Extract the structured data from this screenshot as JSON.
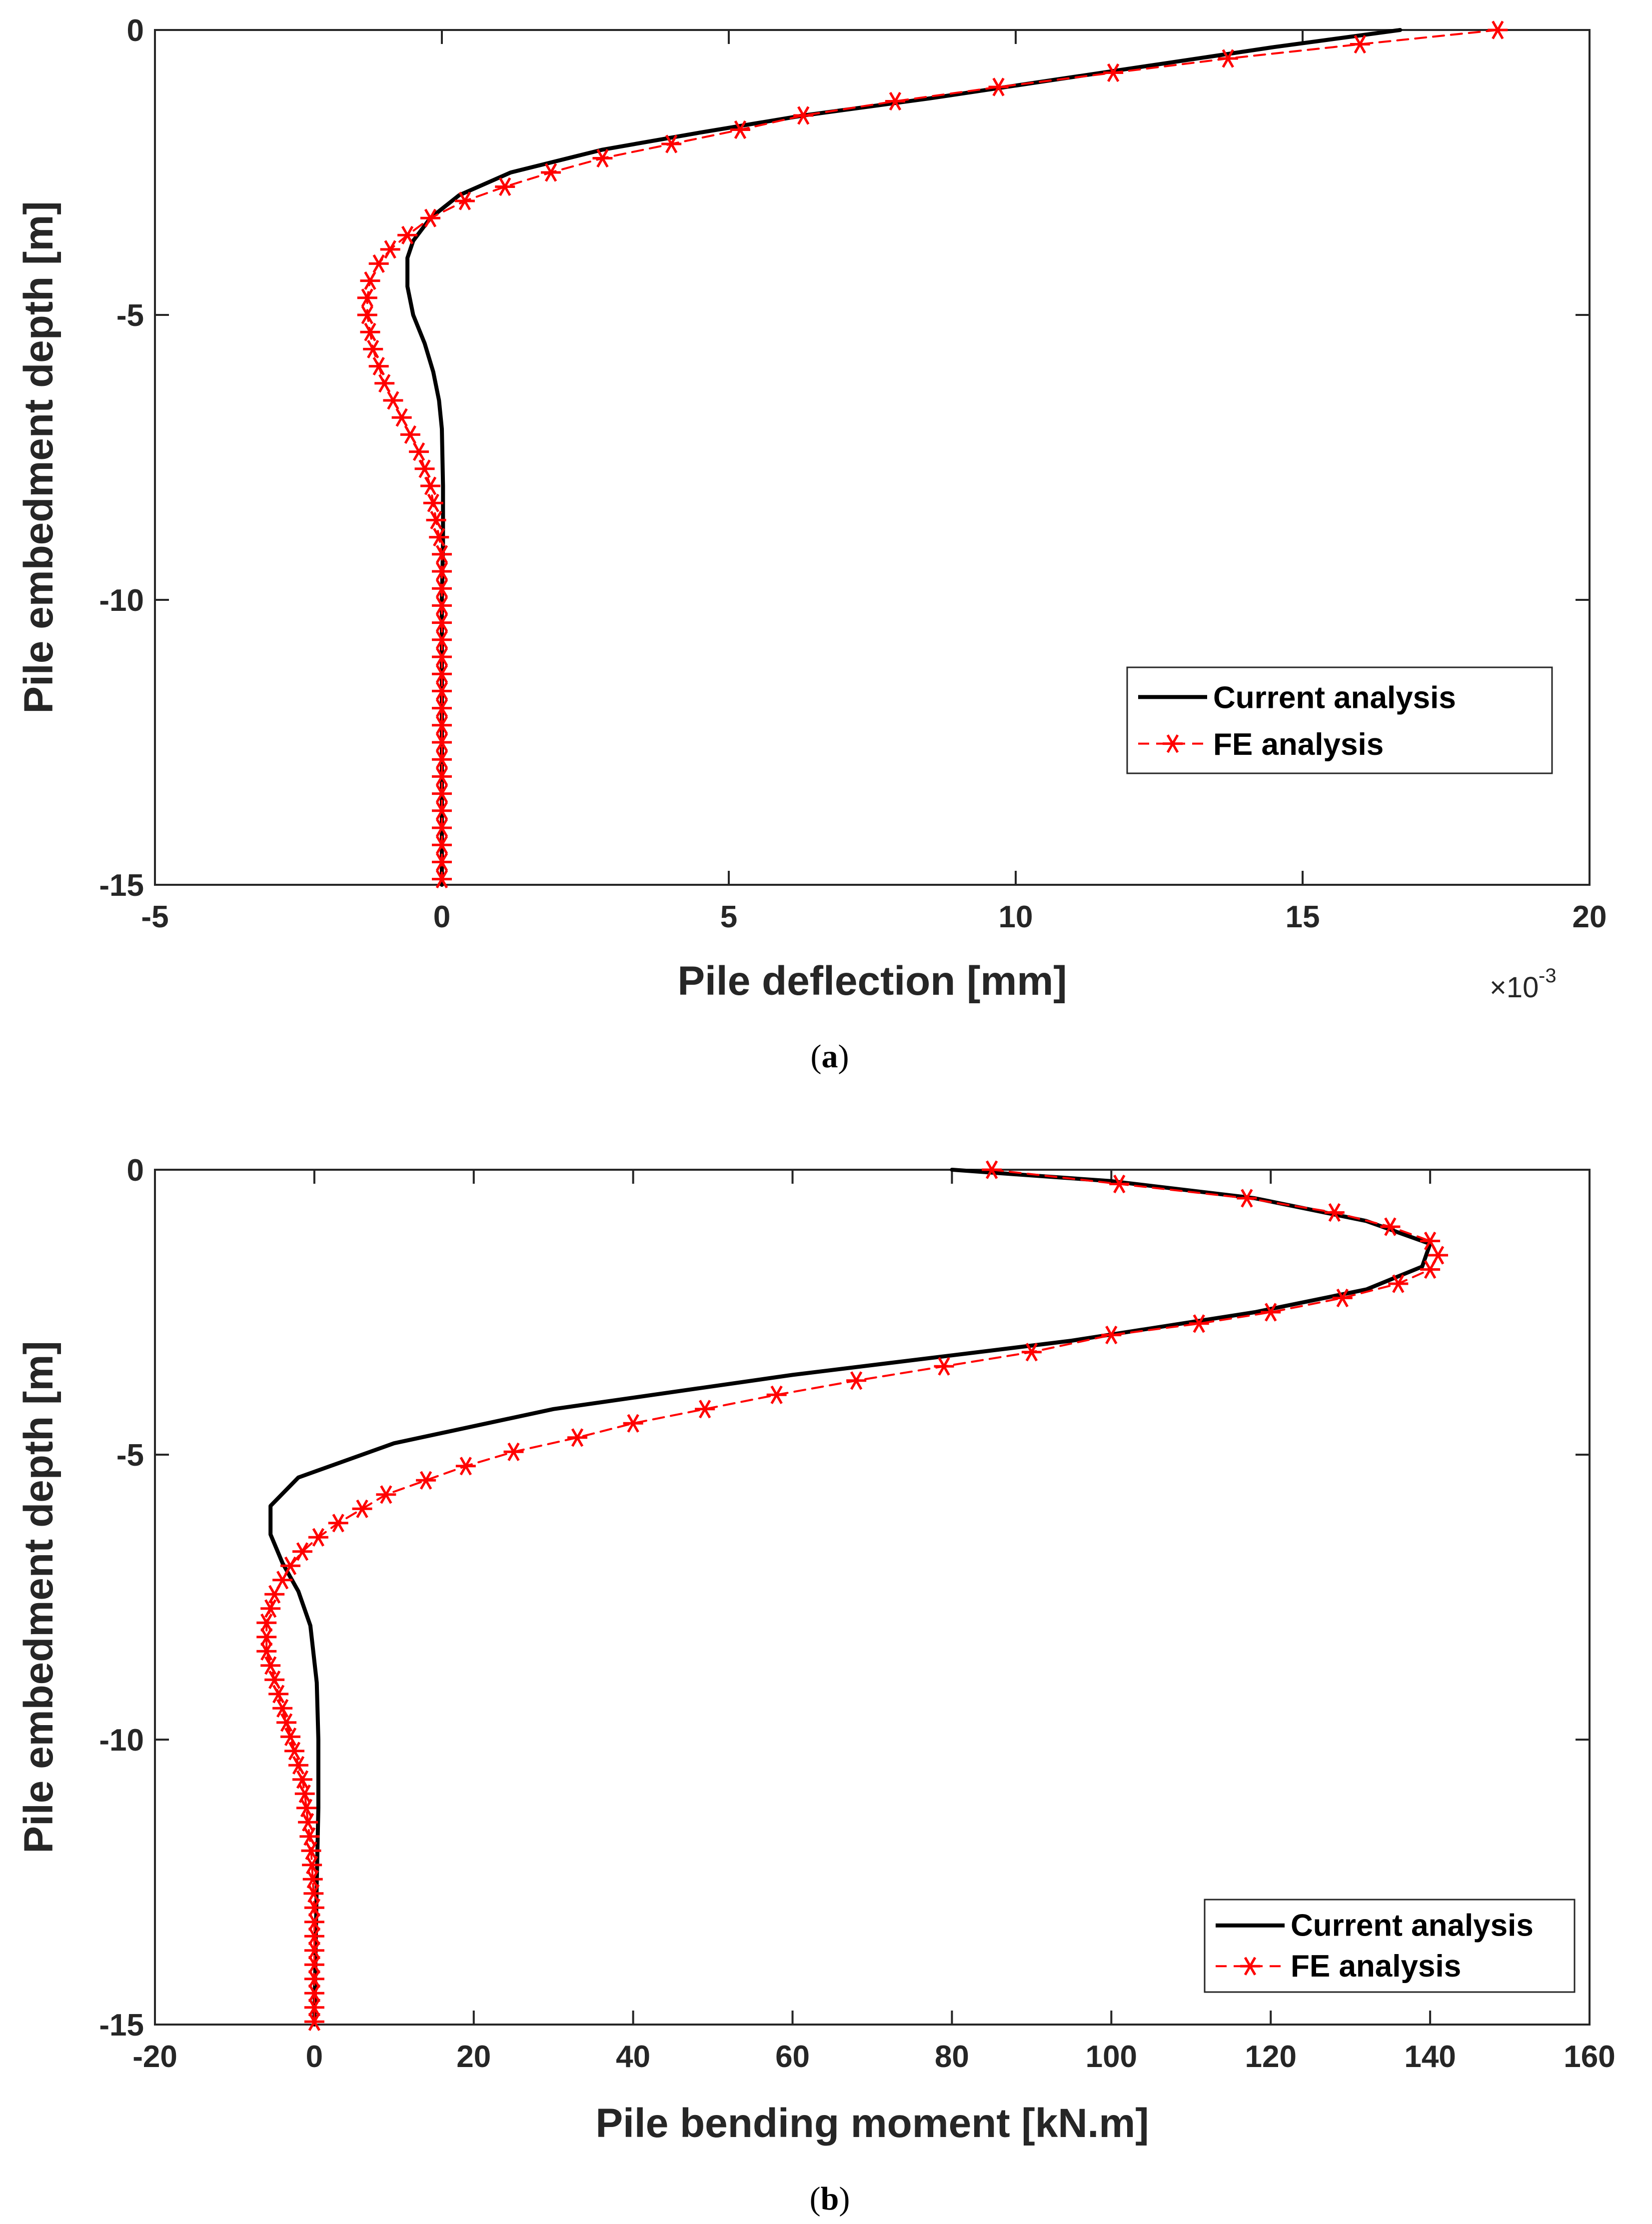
{
  "colors": {
    "axes": "#262626",
    "current": "#000000",
    "fe": "#ff0000",
    "background": "#ffffff"
  },
  "chart_data": [
    {
      "type": "line",
      "panel": "a",
      "caption": "a",
      "xlabel": "Pile deflection [mm]",
      "ylabel": "Pile embedment depth [m]",
      "x_multiplier": "×10",
      "x_multiplier_exp": "-3",
      "xlim": [
        -5,
        20
      ],
      "ylim": [
        -15,
        0
      ],
      "xticks": [
        -5,
        0,
        5,
        10,
        15,
        20
      ],
      "yticks": [
        0,
        -5,
        -10,
        -15
      ],
      "legend_position": "lower-right",
      "series": [
        {
          "name": "Current analysis",
          "style": "solid",
          "color": "#000000",
          "marker": "none",
          "points": [
            [
              16.7,
              0
            ],
            [
              14.5,
              -0.3
            ],
            [
              12.5,
              -0.6
            ],
            [
              10.5,
              -0.9
            ],
            [
              8.5,
              -1.2
            ],
            [
              6.3,
              -1.5
            ],
            [
              4.5,
              -1.8
            ],
            [
              2.8,
              -2.1
            ],
            [
              1.2,
              -2.5
            ],
            [
              0.3,
              -2.9
            ],
            [
              -0.2,
              -3.3
            ],
            [
              -0.5,
              -3.7
            ],
            [
              -0.6,
              -4.0
            ],
            [
              -0.6,
              -4.5
            ],
            [
              -0.5,
              -5.0
            ],
            [
              -0.3,
              -5.5
            ],
            [
              -0.15,
              -6.0
            ],
            [
              -0.05,
              -6.5
            ],
            [
              0.0,
              -7.0
            ],
            [
              0.02,
              -8.0
            ],
            [
              0.02,
              -9.0
            ],
            [
              0.0,
              -10
            ],
            [
              0.0,
              -12
            ],
            [
              0.0,
              -15
            ]
          ]
        },
        {
          "name": "FE analysis",
          "style": "dashed",
          "color": "#ff0000",
          "marker": "asterisk",
          "points": [
            [
              18.4,
              0
            ],
            [
              16.0,
              -0.25
            ],
            [
              13.7,
              -0.5
            ],
            [
              11.7,
              -0.75
            ],
            [
              9.7,
              -1.0
            ],
            [
              7.9,
              -1.25
            ],
            [
              6.3,
              -1.5
            ],
            [
              5.2,
              -1.75
            ],
            [
              4.0,
              -2.0
            ],
            [
              2.8,
              -2.25
            ],
            [
              1.9,
              -2.5
            ],
            [
              1.1,
              -2.75
            ],
            [
              0.4,
              -3.0
            ],
            [
              -0.2,
              -3.3
            ],
            [
              -0.6,
              -3.6
            ],
            [
              -0.9,
              -3.85
            ],
            [
              -1.1,
              -4.1
            ],
            [
              -1.25,
              -4.4
            ],
            [
              -1.3,
              -4.7
            ],
            [
              -1.3,
              -5.0
            ],
            [
              -1.25,
              -5.3
            ],
            [
              -1.2,
              -5.6
            ],
            [
              -1.1,
              -5.9
            ],
            [
              -1.0,
              -6.2
            ],
            [
              -0.85,
              -6.5
            ],
            [
              -0.7,
              -6.8
            ],
            [
              -0.55,
              -7.1
            ],
            [
              -0.4,
              -7.4
            ],
            [
              -0.3,
              -7.7
            ],
            [
              -0.2,
              -8.0
            ],
            [
              -0.15,
              -8.3
            ],
            [
              -0.1,
              -8.6
            ],
            [
              -0.05,
              -8.9
            ],
            [
              0.0,
              -9.2
            ],
            [
              0.0,
              -9.5
            ],
            [
              0.0,
              -9.8
            ],
            [
              0.0,
              -10.1
            ],
            [
              0.0,
              -10.4
            ],
            [
              0.0,
              -10.7
            ],
            [
              0.0,
              -11.0
            ],
            [
              0.0,
              -11.3
            ],
            [
              0.0,
              -11.6
            ],
            [
              0.0,
              -11.9
            ],
            [
              0.0,
              -12.2
            ],
            [
              0.0,
              -12.5
            ],
            [
              0.0,
              -12.8
            ],
            [
              0.0,
              -13.1
            ],
            [
              0.0,
              -13.4
            ],
            [
              0.0,
              -13.7
            ],
            [
              0.0,
              -14.0
            ],
            [
              0.0,
              -14.3
            ],
            [
              0.0,
              -14.6
            ],
            [
              0.0,
              -14.9
            ]
          ]
        }
      ]
    },
    {
      "type": "line",
      "panel": "b",
      "caption": "b",
      "xlabel": "Pile bending moment [kN.m]",
      "ylabel": "Pile embedment depth [m]",
      "xlim": [
        -20,
        160
      ],
      "ylim": [
        -15,
        0
      ],
      "xticks": [
        -20,
        0,
        20,
        40,
        60,
        80,
        100,
        120,
        140,
        160
      ],
      "yticks": [
        0,
        -5,
        -10,
        -15
      ],
      "legend_position": "lower-right",
      "series": [
        {
          "name": "Current analysis",
          "style": "solid",
          "color": "#000000",
          "marker": "none",
          "points": [
            [
              80,
              0
            ],
            [
              100,
              -0.2
            ],
            [
              118,
              -0.5
            ],
            [
              132,
              -0.9
            ],
            [
              140,
              -1.3
            ],
            [
              139,
              -1.7
            ],
            [
              132,
              -2.1
            ],
            [
              118,
              -2.5
            ],
            [
              95,
              -3.0
            ],
            [
              60,
              -3.6
            ],
            [
              30,
              -4.2
            ],
            [
              10,
              -4.8
            ],
            [
              -2,
              -5.4
            ],
            [
              -5.5,
              -5.9
            ],
            [
              -5.5,
              -6.4
            ],
            [
              -4,
              -6.9
            ],
            [
              -2,
              -7.4
            ],
            [
              -0.5,
              -8.0
            ],
            [
              0.3,
              -9.0
            ],
            [
              0.5,
              -10
            ],
            [
              0.5,
              -11.2
            ],
            [
              0.3,
              -12.5
            ],
            [
              0,
              -15
            ]
          ]
        },
        {
          "name": "FE analysis",
          "style": "dashed",
          "color": "#ff0000",
          "marker": "asterisk",
          "points": [
            [
              85,
              0
            ],
            [
              101,
              -0.25
            ],
            [
              117,
              -0.5
            ],
            [
              128,
              -0.75
            ],
            [
              135,
              -1.0
            ],
            [
              140,
              -1.25
            ],
            [
              141,
              -1.5
            ],
            [
              140,
              -1.75
            ],
            [
              136,
              -2.0
            ],
            [
              129,
              -2.25
            ],
            [
              120,
              -2.5
            ],
            [
              111,
              -2.7
            ],
            [
              100,
              -2.9
            ],
            [
              90,
              -3.2
            ],
            [
              79,
              -3.45
            ],
            [
              68,
              -3.7
            ],
            [
              58,
              -3.95
            ],
            [
              49,
              -4.2
            ],
            [
              40,
              -4.45
            ],
            [
              33,
              -4.7
            ],
            [
              25,
              -4.95
            ],
            [
              19,
              -5.2
            ],
            [
              14,
              -5.45
            ],
            [
              9,
              -5.7
            ],
            [
              6,
              -5.95
            ],
            [
              3,
              -6.2
            ],
            [
              0.5,
              -6.45
            ],
            [
              -1.5,
              -6.7
            ],
            [
              -3,
              -6.95
            ],
            [
              -4,
              -7.2
            ],
            [
              -5,
              -7.45
            ],
            [
              -5.5,
              -7.7
            ],
            [
              -6,
              -7.95
            ],
            [
              -6,
              -8.2
            ],
            [
              -6,
              -8.45
            ],
            [
              -5.5,
              -8.7
            ],
            [
              -5,
              -8.95
            ],
            [
              -4.5,
              -9.2
            ],
            [
              -4,
              -9.45
            ],
            [
              -3.5,
              -9.7
            ],
            [
              -3,
              -9.95
            ],
            [
              -2.5,
              -10.2
            ],
            [
              -2,
              -10.45
            ],
            [
              -1.5,
              -10.7
            ],
            [
              -1.2,
              -10.95
            ],
            [
              -1,
              -11.2
            ],
            [
              -0.8,
              -11.45
            ],
            [
              -0.6,
              -11.7
            ],
            [
              -0.4,
              -11.95
            ],
            [
              -0.3,
              -12.2
            ],
            [
              -0.2,
              -12.45
            ],
            [
              -0.1,
              -12.7
            ],
            [
              0,
              -12.95
            ],
            [
              0,
              -13.2
            ],
            [
              0,
              -13.45
            ],
            [
              0,
              -13.7
            ],
            [
              0,
              -13.95
            ],
            [
              0,
              -14.2
            ],
            [
              0,
              -14.45
            ],
            [
              0,
              -14.7
            ],
            [
              0,
              -14.95
            ]
          ]
        }
      ]
    }
  ]
}
